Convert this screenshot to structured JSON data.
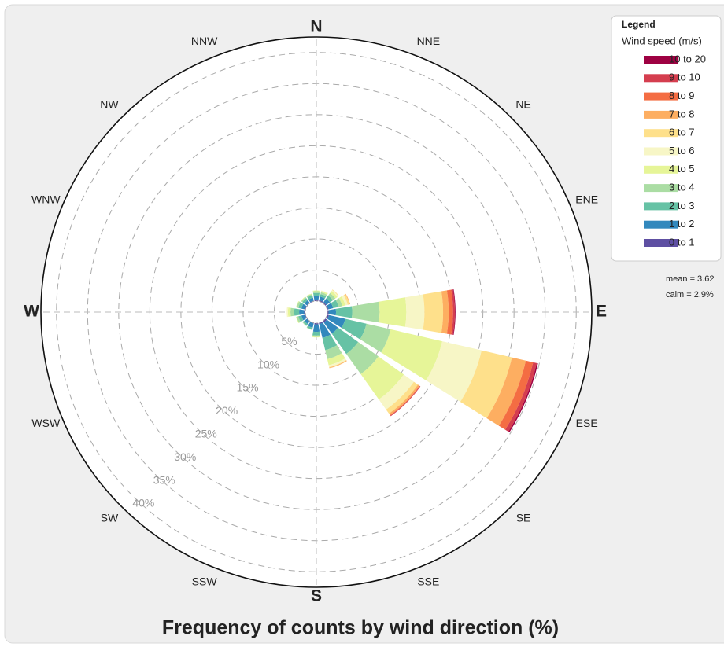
{
  "chart_data": {
    "type": "windrose",
    "title": "Frequency of counts by wind direction (%)",
    "categories": [
      "N",
      "NNE",
      "NE",
      "ENE",
      "E",
      "ESE",
      "SE",
      "SSE",
      "S",
      "SSW",
      "SW",
      "WSW",
      "W",
      "WNW",
      "NW",
      "NNW"
    ],
    "legend_title": "Legend",
    "legend_subtitle": "Wind speed (m/s)",
    "legend_position": "upper right",
    "annotations": [
      "mean = 3.62",
      "calm = 2.9%"
    ],
    "rlim": [
      0,
      42.5
    ],
    "rticks": [
      {
        "value": 5,
        "label": "5%"
      },
      {
        "value": 10,
        "label": "10%"
      },
      {
        "value": 15,
        "label": "15%"
      },
      {
        "value": 20,
        "label": "20%"
      },
      {
        "value": 25,
        "label": "25%"
      },
      {
        "value": 30,
        "label": "30%"
      },
      {
        "value": 35,
        "label": "35%"
      },
      {
        "value": 40,
        "label": "40%"
      }
    ],
    "grid": true,
    "series": [
      {
        "name": "0 to 1",
        "color": "#5e4fa2",
        "values": [
          0.2,
          0.2,
          0.2,
          0.2,
          0.2,
          0.3,
          0.3,
          0.2,
          0.2,
          0.1,
          0.1,
          0.1,
          0.2,
          0.1,
          0.1,
          0.1
        ]
      },
      {
        "name": "1 to 2",
        "color": "#3288bd",
        "values": [
          0.6,
          0.6,
          0.7,
          0.8,
          1.2,
          2.7,
          2.2,
          2.3,
          1.2,
          0.7,
          0.5,
          0.6,
          0.8,
          0.6,
          0.5,
          0.5
        ]
      },
      {
        "name": "2 to 3",
        "color": "#66c2a5",
        "values": [
          0.5,
          0.4,
          0.6,
          0.9,
          2.6,
          3.5,
          4.0,
          2.0,
          0.6,
          0.3,
          0.3,
          0.5,
          0.8,
          0.5,
          0.4,
          0.4
        ]
      },
      {
        "name": "3 to 4",
        "color": "#abdda4",
        "values": [
          0.3,
          0.3,
          0.5,
          0.6,
          4.4,
          4.0,
          4.0,
          1.5,
          0.2,
          0.1,
          0.1,
          0.3,
          0.6,
          0.3,
          0.2,
          0.2
        ]
      },
      {
        "name": "4 to 5",
        "color": "#e6f598",
        "values": [
          0.1,
          0.2,
          0.4,
          0.5,
          4.3,
          8.5,
          5.0,
          1.0,
          0.1,
          0,
          0,
          0.1,
          0.4,
          0.1,
          0.1,
          0.1
        ]
      },
      {
        "name": "5 to 6",
        "color": "#f7f6c6",
        "values": [
          0,
          0.1,
          0.2,
          0.4,
          2.9,
          6.5,
          2.0,
          0.3,
          0,
          0,
          0,
          0,
          0.2,
          0,
          0,
          0
        ]
      },
      {
        "name": "6 to 7",
        "color": "#fee08b",
        "values": [
          0,
          0,
          0.1,
          0.3,
          3.0,
          5.0,
          0.8,
          0.1,
          0,
          0,
          0,
          0,
          0,
          0,
          0,
          0
        ]
      },
      {
        "name": "7 to 8",
        "color": "#fdae61",
        "values": [
          0,
          0,
          0,
          0.1,
          0.9,
          2.3,
          0.3,
          0.1,
          0,
          0,
          0,
          0,
          0,
          0,
          0,
          0
        ]
      },
      {
        "name": "8 to 9",
        "color": "#f46d43",
        "values": [
          0,
          0,
          0,
          0,
          0.7,
          1.2,
          0.1,
          0,
          0,
          0,
          0,
          0,
          0,
          0,
          0,
          0
        ]
      },
      {
        "name": "9 to 10",
        "color": "#d53e4f",
        "values": [
          0,
          0,
          0,
          0,
          0.3,
          0.6,
          0.1,
          0,
          0,
          0,
          0,
          0,
          0,
          0,
          0,
          0
        ]
      },
      {
        "name": "10 to 20",
        "color": "#9e0142",
        "values": [
          0,
          0,
          0,
          0,
          0.1,
          0.2,
          0,
          0,
          0,
          0,
          0,
          0,
          0,
          0,
          0,
          0
        ]
      }
    ]
  }
}
